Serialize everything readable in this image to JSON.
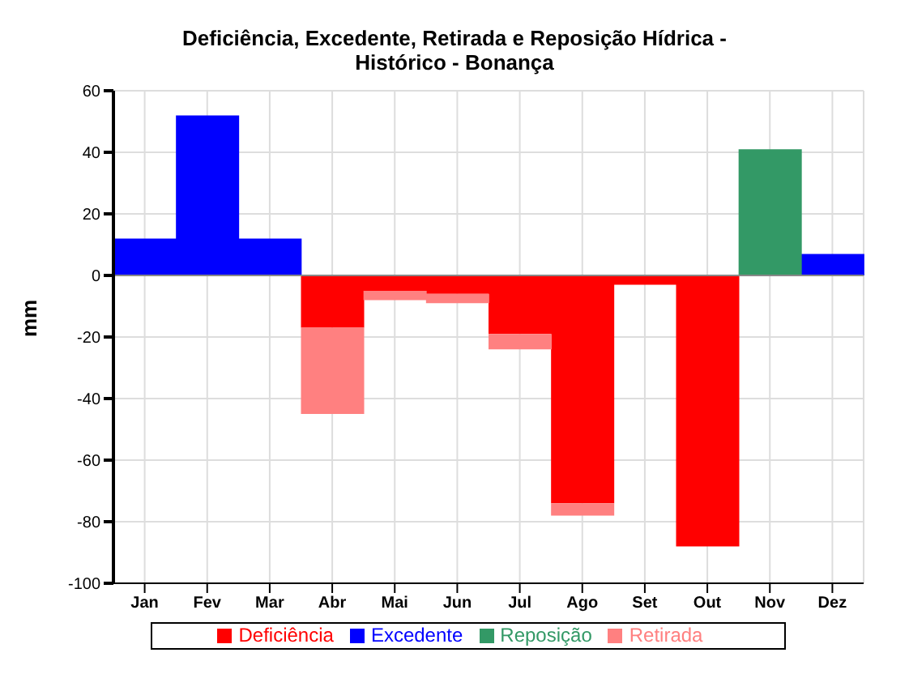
{
  "chart_data": {
    "type": "bar",
    "title": "Deficiência, Excedente, Retirada e Reposição Hídrica - Histórico - Bonança",
    "ylabel": "mm",
    "categories": [
      "Jan",
      "Fev",
      "Mar",
      "Abr",
      "Mai",
      "Jun",
      "Jul",
      "Ago",
      "Set",
      "Out",
      "Nov",
      "Dez"
    ],
    "series": [
      {
        "name": "Deficiência",
        "color": "#ff0000",
        "values": [
          null,
          null,
          null,
          -17,
          -5,
          -6,
          -19,
          -74,
          -3,
          -88,
          null,
          null
        ]
      },
      {
        "name": "Excedente",
        "color": "#0000ff",
        "values": [
          12,
          52,
          12,
          null,
          null,
          null,
          null,
          null,
          null,
          null,
          null,
          7
        ]
      },
      {
        "name": "Retirada",
        "color": "#ff8080",
        "values": [
          null,
          null,
          null,
          -28,
          -3,
          -3,
          -5,
          -4,
          null,
          null,
          null,
          null
        ]
      },
      {
        "name": "Reposição",
        "color": "#339966",
        "values": [
          null,
          null,
          null,
          null,
          null,
          null,
          null,
          null,
          null,
          null,
          41,
          null
        ]
      }
    ],
    "stacked": true,
    "ylim": [
      -100,
      60
    ],
    "yticks": [
      -100,
      -80,
      -60,
      -40,
      -20,
      0,
      20,
      40,
      60
    ],
    "grid": true,
    "legend": "bottom"
  }
}
